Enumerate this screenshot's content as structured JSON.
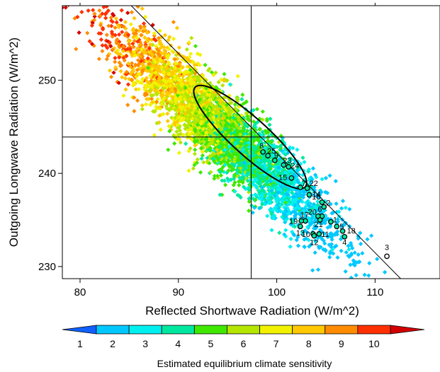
{
  "chart_data": {
    "type": "scatter",
    "xlabel": "Reflected Shortwave Radiation (W/m^2)",
    "ylabel": "Outgoing Longwave Radiation (W/m^2)",
    "xlim": [
      78.2,
      116.6
    ],
    "ylim": [
      228.7,
      258.0
    ],
    "x_ticks": [
      "80",
      "90",
      "100",
      "110"
    ],
    "y_ticks": [
      "230",
      "240",
      "250"
    ],
    "grid": false,
    "reference_lines": {
      "vertical_x": 97.4,
      "horizontal_y": 243.9
    },
    "trend_line": [
      [
        85.2,
        258.0
      ],
      [
        112.6,
        228.7
      ]
    ],
    "ellipse": {
      "center": [
        97.3,
        243.9
      ],
      "points_on_axis": [
        [
          91.8,
          248.5
        ],
        [
          103.0,
          237.8
        ]
      ],
      "semi_minor": 1.2
    },
    "colorbar": {
      "label": "Estimated equilibrium climate sensitivity",
      "ticks": [
        "1",
        "2",
        "3",
        "4",
        "5",
        "6",
        "7",
        "8",
        "9",
        "10"
      ],
      "range": [
        1,
        10
      ],
      "colors": [
        "#00c8ff",
        "#00f0f0",
        "#00e8a0",
        "#40e800",
        "#b4e600",
        "#f2f200",
        "#ffc800",
        "#ff8c00",
        "#ff3000"
      ],
      "under_color": "#1060ff",
      "over_color": "#d40000"
    },
    "cloud": {
      "center": [
        94.5,
        244.5
      ],
      "sd_along": 7.5,
      "sd_across": 1.6,
      "angle_deg": -45,
      "count": 4200
    },
    "model_points": [
      {
        "label": "3",
        "x": 111.2,
        "y": 231.1,
        "sensitivity": 3
      },
      {
        "label": "4",
        "x": 106.9,
        "y": 233.2,
        "sensitivity": 3
      },
      {
        "label": "18",
        "x": 106.7,
        "y": 233.8,
        "sensitivity": 3
      },
      {
        "label": "5",
        "x": 106.1,
        "y": 234.3,
        "sensitivity": 3
      },
      {
        "label": "1",
        "x": 105.5,
        "y": 234.8,
        "sensitivity": 3
      },
      {
        "label": "6",
        "x": 104.6,
        "y": 235.4,
        "sensitivity": 3
      },
      {
        "label": "2",
        "x": 104.8,
        "y": 236.4,
        "sensitivity": 3
      },
      {
        "label": "16",
        "x": 104.6,
        "y": 236.9,
        "sensitivity": 3
      },
      {
        "label": "20",
        "x": 104.2,
        "y": 235.4,
        "sensitivity": 3
      },
      {
        "label": "21",
        "x": 104.4,
        "y": 235.0,
        "sensitivity": 3
      },
      {
        "label": "17",
        "x": 102.9,
        "y": 234.9,
        "sensitivity": 3
      },
      {
        "label": "19",
        "x": 102.5,
        "y": 234.9,
        "sensitivity": 3
      },
      {
        "label": "13",
        "x": 102.4,
        "y": 234.3,
        "sensitivity": 3
      },
      {
        "label": "10",
        "x": 103.7,
        "y": 233.5,
        "sensitivity": 3
      },
      {
        "label": "11",
        "x": 104.3,
        "y": 233.5,
        "sensitivity": 3
      },
      {
        "label": "12",
        "x": 103.8,
        "y": 233.3,
        "sensitivity": 3
      },
      {
        "label": "14",
        "x": 103.3,
        "y": 237.7,
        "sensitivity": 3
      },
      {
        "label": "22",
        "x": 103.1,
        "y": 238.4,
        "sensitivity": 3
      },
      {
        "label": "7",
        "x": 102.4,
        "y": 238.5,
        "sensitivity": 3
      },
      {
        "label": "15",
        "x": 101.5,
        "y": 239.5,
        "sensitivity": 3
      },
      {
        "label": "24",
        "x": 101.2,
        "y": 240.7,
        "sensitivity": 3
      },
      {
        "label": "23",
        "x": 100.7,
        "y": 240.9,
        "sensitivity": 3
      },
      {
        "label": "9",
        "x": 99.8,
        "y": 241.4,
        "sensitivity": 3
      },
      {
        "label": "25",
        "x": 99.1,
        "y": 241.9,
        "sensitivity": 3
      },
      {
        "label": "8",
        "x": 98.6,
        "y": 242.3,
        "sensitivity": 3
      }
    ]
  }
}
